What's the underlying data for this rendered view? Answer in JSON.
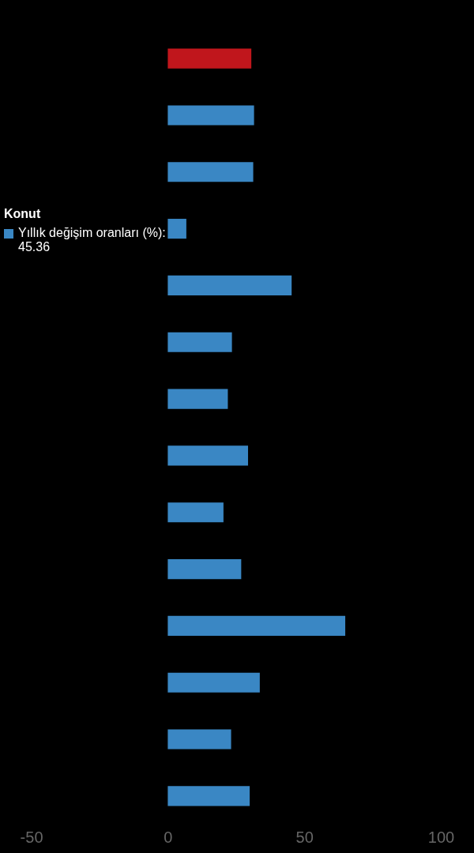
{
  "chart_data": {
    "type": "bar",
    "orientation": "horizontal",
    "categories": [
      null,
      null,
      null,
      null,
      null,
      null,
      null,
      null,
      null,
      null,
      null,
      null,
      null,
      null
    ],
    "values": [
      30.6,
      31.6,
      31.3,
      6.8,
      45.36,
      23.5,
      22,
      29.4,
      20.4,
      26.9,
      65,
      33.7,
      23.2,
      30
    ],
    "colors": [
      "#c0161c",
      "#3a87c4",
      "#3a87c4",
      "#3a87c4",
      "#3a87c4",
      "#3a87c4",
      "#3a87c4",
      "#3a87c4",
      "#3a87c4",
      "#3a87c4",
      "#3a87c4",
      "#3a87c4",
      "#3a87c4",
      "#3a87c4"
    ],
    "xlim": [
      -60,
      100
    ],
    "xticks": [
      -50,
      0,
      50,
      100
    ],
    "grid": false,
    "annotations": [
      "Konut",
      "Yıllık değişim oranları (%): 45.36"
    ]
  }
}
